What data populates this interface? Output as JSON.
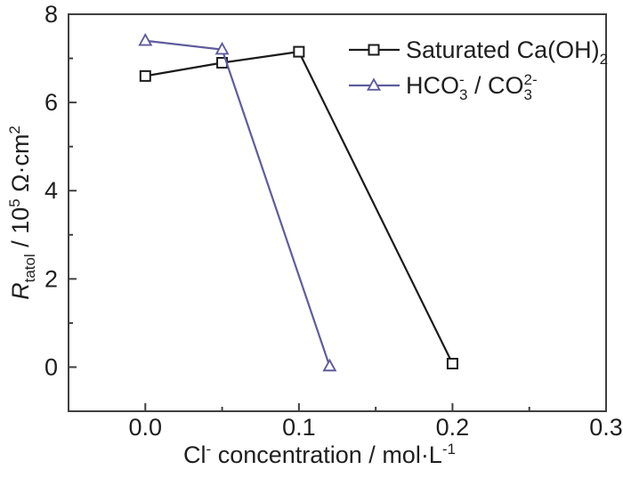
{
  "figure": {
    "background": "#ffffff"
  },
  "style": {
    "axis_color": "#3f3f3f",
    "text_color": "#1f1f1f",
    "series1_color": "#1b1b1b",
    "series2_color": "#5f5c9d"
  },
  "chart_data": {
    "type": "line",
    "title": "",
    "xlabel": "Cl- concentration / mol·L-1",
    "ylabel": "Rtatol / 10^5 Ω·cm^2",
    "xlabel_runs": [
      {
        "t": "Cl"
      },
      {
        "t": "-",
        "pos": "sup"
      },
      {
        "t": " concentration / mol·L"
      },
      {
        "t": "-1",
        "pos": "sup"
      }
    ],
    "ylabel_runs": [
      {
        "t": "R",
        "style": "italic"
      },
      {
        "t": "tatol",
        "pos": "sub"
      },
      {
        "t": " / 10"
      },
      {
        "t": "5",
        "pos": "sup"
      },
      {
        "t": " ",
        "pos": ""
      },
      {
        "t": "Ω·cm"
      },
      {
        "t": "2",
        "pos": "sup"
      }
    ],
    "x_axis": {
      "min": -0.05,
      "max": 0.3,
      "major_ticks": [
        0.0,
        0.1,
        0.2,
        0.3
      ],
      "major_tick_labels": [
        "0.0",
        "0.1",
        "0.2",
        "0.3"
      ],
      "minor_ticks": [
        0.05,
        0.15,
        0.25
      ],
      "grid": false
    },
    "y_axis": {
      "min": -1,
      "max": 8,
      "major_ticks": [
        0,
        2,
        4,
        6,
        8
      ],
      "major_tick_labels": [
        "0",
        "2",
        "4",
        "6",
        "8"
      ],
      "minor_ticks": [
        1,
        3,
        5,
        7
      ],
      "grid": false
    },
    "legend": {
      "position": "top-right",
      "border": false
    },
    "series": [
      {
        "name": "Saturated Ca(OH)2",
        "label_runs": [
          {
            "t": "Saturated Ca(OH)"
          },
          {
            "t": "2",
            "pos": "sub"
          }
        ],
        "color": "#1b1b1b",
        "marker": "square",
        "points": [
          [
            0.0,
            6.6
          ],
          [
            0.05,
            6.9
          ],
          [
            0.1,
            7.15
          ],
          [
            0.2,
            0.08
          ]
        ]
      },
      {
        "name": "HCO3- / CO3 2-",
        "label_runs": [
          {
            "t": "HCO"
          },
          {
            "stack": {
              "sub": "3",
              "sup": "-"
            }
          },
          {
            "t": " / CO"
          },
          {
            "stack": {
              "sub": "3",
              "sup": "2-"
            }
          }
        ],
        "color": "#5f5c9d",
        "marker": "triangle",
        "points": [
          [
            0.0,
            7.4
          ],
          [
            0.05,
            7.2
          ],
          [
            0.12,
            0.02
          ]
        ]
      }
    ]
  }
}
